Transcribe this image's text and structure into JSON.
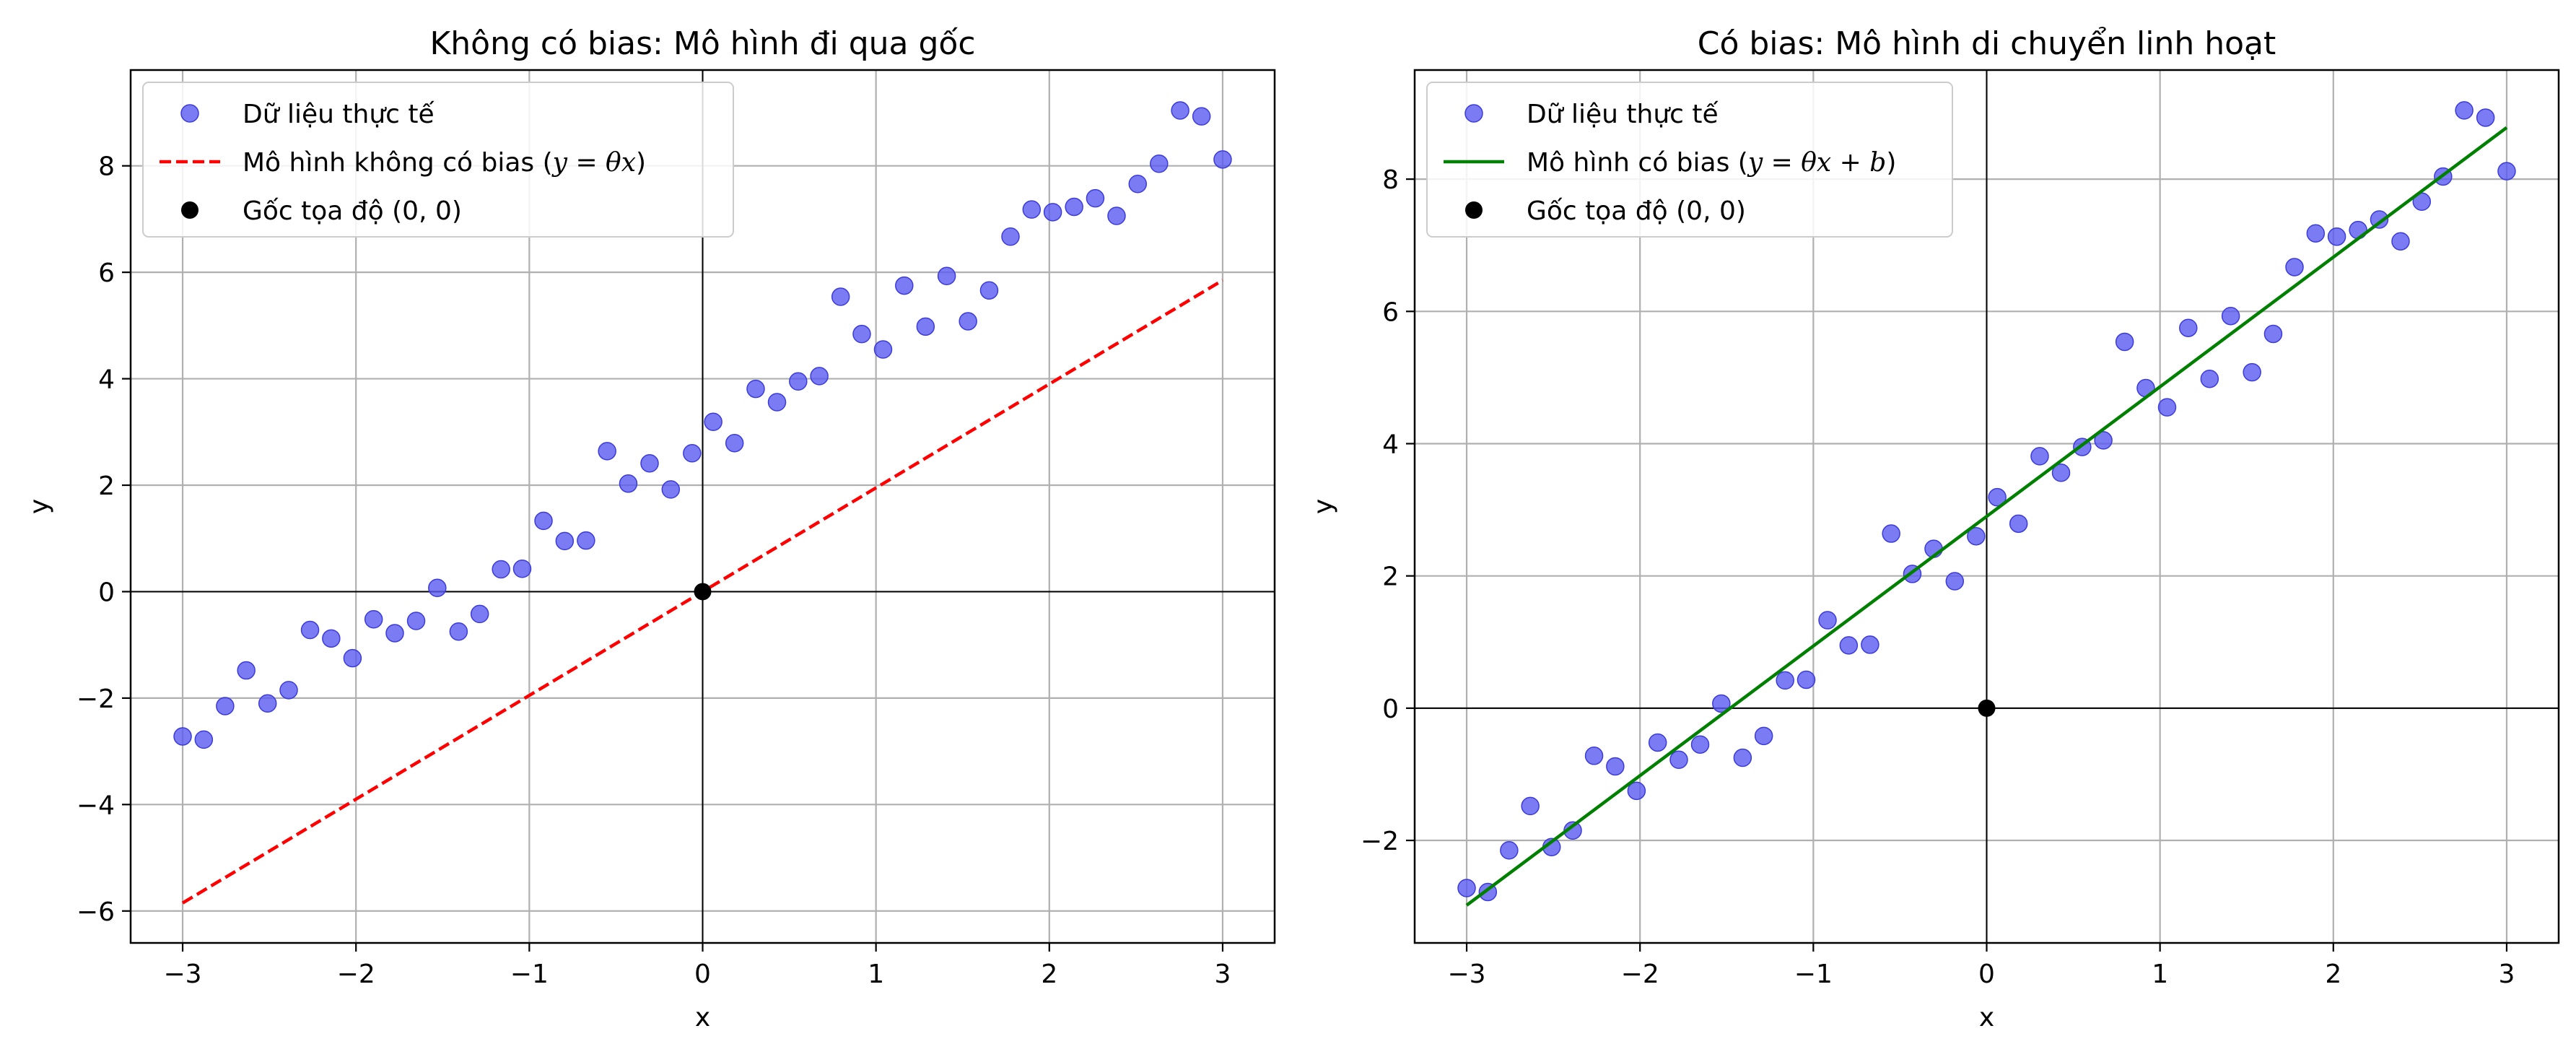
{
  "chart_data": [
    {
      "type": "scatter",
      "title": "Không có bias: Mô hình đi qua gốc",
      "xlabel": "x",
      "ylabel": "y",
      "xlim": [
        -3.3,
        3.3
      ],
      "ylim": [
        -6.6,
        9.8
      ],
      "xticks": [
        -3,
        -2,
        -1,
        0,
        1,
        2,
        3
      ],
      "xtick_labels": [
        "−3",
        "−2",
        "−1",
        "0",
        "1",
        "2",
        "3"
      ],
      "yticks": [
        -6,
        -4,
        -2,
        0,
        2,
        4,
        6,
        8
      ],
      "ytick_labels": [
        "−6",
        "−4",
        "−2",
        "0",
        "2",
        "4",
        "6",
        "8"
      ],
      "grid": true,
      "legend_position": "top-left",
      "series": [
        {
          "name": "Dữ liệu thực tế",
          "kind": "scatter",
          "color": "#5a5af0",
          "x": [
            -3.0,
            -2.878,
            -2.755,
            -2.633,
            -2.51,
            -2.388,
            -2.265,
            -2.143,
            -2.02,
            -1.898,
            -1.776,
            -1.653,
            -1.531,
            -1.408,
            -1.286,
            -1.163,
            -1.041,
            -0.918,
            -0.796,
            -0.673,
            -0.551,
            -0.429,
            -0.306,
            -0.184,
            -0.061,
            0.061,
            0.184,
            0.306,
            0.429,
            0.551,
            0.673,
            0.796,
            0.918,
            1.041,
            1.163,
            1.286,
            1.408,
            1.531,
            1.653,
            1.776,
            1.898,
            2.02,
            2.143,
            2.265,
            2.388,
            2.51,
            2.633,
            2.755,
            2.878,
            3.0
          ],
          "y": [
            -2.72,
            -2.78,
            -2.15,
            -1.48,
            -2.1,
            -1.85,
            -0.72,
            -0.88,
            -1.25,
            -0.52,
            -0.78,
            -0.55,
            0.07,
            -0.75,
            -0.42,
            0.42,
            0.43,
            1.33,
            0.95,
            0.96,
            2.64,
            2.03,
            2.41,
            1.92,
            2.6,
            3.19,
            2.79,
            3.81,
            3.56,
            3.95,
            4.05,
            5.54,
            4.84,
            4.55,
            5.75,
            4.98,
            5.93,
            5.08,
            5.66,
            6.67,
            7.18,
            7.13,
            7.23,
            7.39,
            7.06,
            7.66,
            8.04,
            9.04,
            8.93,
            8.12
          ]
        },
        {
          "name": "Mô hình không có bias (y = θx)",
          "name_plain": "Mô hình không có bias (",
          "name_math": "y = θx",
          "name_suffix": ")",
          "kind": "line",
          "style": "dashed",
          "color": "#ff0000",
          "x": [
            -3,
            3
          ],
          "y": [
            -5.85,
            5.85
          ]
        },
        {
          "name": "Gốc tọa độ (0, 0)",
          "kind": "point",
          "color": "#000000",
          "x": [
            0
          ],
          "y": [
            0
          ]
        }
      ]
    },
    {
      "type": "scatter",
      "title": "Có bias: Mô hình di chuyển linh hoạt",
      "xlabel": "x",
      "ylabel": "y",
      "xlim": [
        -3.3,
        3.3
      ],
      "ylim": [
        -3.55,
        9.65
      ],
      "xticks": [
        -3,
        -2,
        -1,
        0,
        1,
        2,
        3
      ],
      "xtick_labels": [
        "−3",
        "−2",
        "−1",
        "0",
        "1",
        "2",
        "3"
      ],
      "yticks": [
        -2,
        0,
        2,
        4,
        6,
        8
      ],
      "ytick_labels": [
        "−2",
        "0",
        "2",
        "4",
        "6",
        "8"
      ],
      "grid": true,
      "legend_position": "top-left",
      "series": [
        {
          "name": "Dữ liệu thực tế",
          "kind": "scatter",
          "color": "#5a5af0",
          "x": [
            -3.0,
            -2.878,
            -2.755,
            -2.633,
            -2.51,
            -2.388,
            -2.265,
            -2.143,
            -2.02,
            -1.898,
            -1.776,
            -1.653,
            -1.531,
            -1.408,
            -1.286,
            -1.163,
            -1.041,
            -0.918,
            -0.796,
            -0.673,
            -0.551,
            -0.429,
            -0.306,
            -0.184,
            -0.061,
            0.061,
            0.184,
            0.306,
            0.429,
            0.551,
            0.673,
            0.796,
            0.918,
            1.041,
            1.163,
            1.286,
            1.408,
            1.531,
            1.653,
            1.776,
            1.898,
            2.02,
            2.143,
            2.265,
            2.388,
            2.51,
            2.633,
            2.755,
            2.878,
            3.0
          ],
          "y": [
            -2.72,
            -2.78,
            -2.15,
            -1.48,
            -2.1,
            -1.85,
            -0.72,
            -0.88,
            -1.25,
            -0.52,
            -0.78,
            -0.55,
            0.07,
            -0.75,
            -0.42,
            0.42,
            0.43,
            1.33,
            0.95,
            0.96,
            2.64,
            2.03,
            2.41,
            1.92,
            2.6,
            3.19,
            2.79,
            3.81,
            3.56,
            3.95,
            4.05,
            5.54,
            4.84,
            4.55,
            5.75,
            4.98,
            5.93,
            5.08,
            5.66,
            6.67,
            7.18,
            7.13,
            7.23,
            7.39,
            7.06,
            7.66,
            8.04,
            9.04,
            8.93,
            8.12
          ]
        },
        {
          "name": "Mô hình có bias (y = θx + b)",
          "name_plain": "Mô hình có bias (",
          "name_math": "y = θx + b",
          "name_suffix": ")",
          "kind": "line",
          "style": "solid",
          "color": "#008000",
          "x": [
            -3,
            3
          ],
          "y": [
            -2.98,
            8.78
          ]
        },
        {
          "name": "Gốc tọa độ (0, 0)",
          "kind": "point",
          "color": "#000000",
          "x": [
            0
          ],
          "y": [
            0
          ]
        }
      ]
    }
  ]
}
